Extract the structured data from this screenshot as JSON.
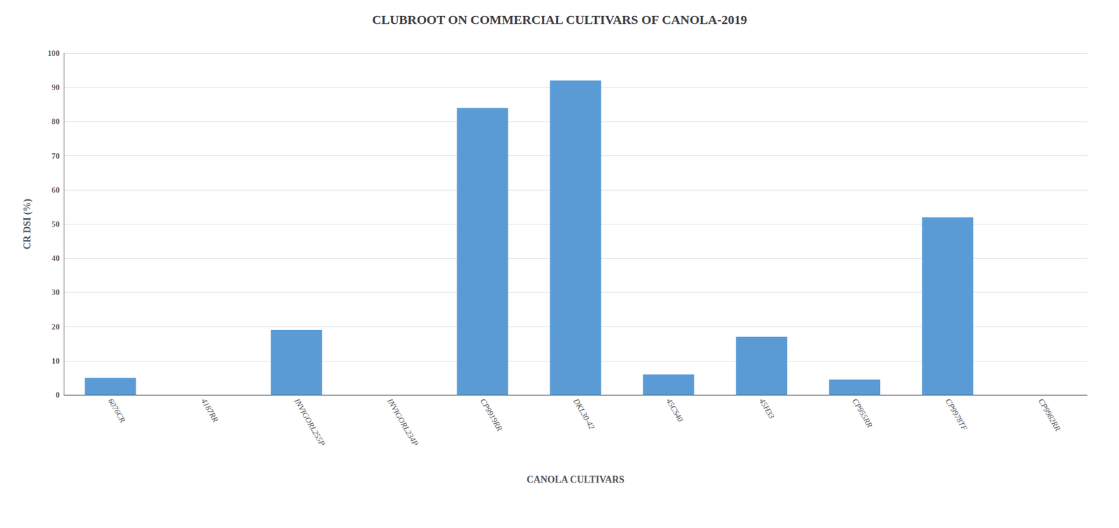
{
  "chart_data": {
    "type": "bar",
    "title": "CLUBROOT ON COMMERCIAL CULTIVARS OF CANOLA-2019",
    "xlabel": "CANOLA CULTIVARS",
    "ylabel": "CR DSI (%)",
    "categories": [
      "6076CR",
      "4187RR",
      "INVIGORL255P",
      "INVIGORL234P",
      "CP9919RR",
      "DKL30-42",
      "45CS40",
      "45H33",
      "CP955RR",
      "CP9978TF",
      "CP9982RR"
    ],
    "values": [
      5,
      0,
      19,
      0,
      84,
      92,
      6,
      17,
      4.5,
      52,
      0
    ],
    "color": "#5B9BD5",
    "ylim": [
      0,
      100
    ],
    "yticks": [
      0,
      10,
      20,
      30,
      40,
      50,
      60,
      70,
      80,
      90,
      100
    ],
    "grid": true
  }
}
